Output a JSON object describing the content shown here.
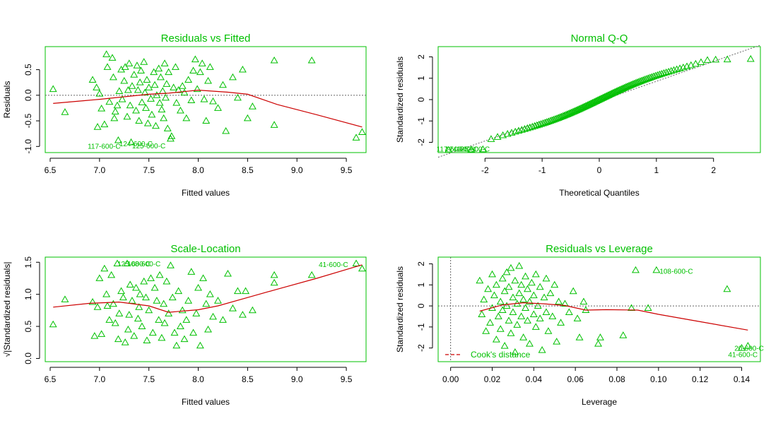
{
  "colors": {
    "accent": "#00c000",
    "smooth": "#cc0000",
    "reference": "#666666",
    "text": "#000000"
  },
  "chart_data": [
    {
      "id": "rvf",
      "type": "scatter",
      "title": "Residuals vs Fitted",
      "xlabel": "Fitted values",
      "ylabel": "Residuals",
      "xlim": [
        6.45,
        9.7
      ],
      "ylim": [
        -1.12,
        0.95
      ],
      "xticks": [
        6.5,
        7.0,
        7.5,
        8.0,
        8.5,
        9.0,
        9.5
      ],
      "xtick_labels": [
        "6.5",
        "7.0",
        "7.5",
        "8.0",
        "8.5",
        "9.0",
        "9.5"
      ],
      "yticks": [
        -1.0,
        -0.5,
        0.0,
        0.5
      ],
      "ytick_labels": [
        "-1.0",
        "-0.5",
        "0.0",
        "0.5"
      ],
      "reference_line": {
        "type": "h",
        "value": 0
      },
      "points": [
        [
          6.53,
          0.12
        ],
        [
          6.65,
          -0.33
        ],
        [
          6.93,
          0.3
        ],
        [
          6.97,
          0.15
        ],
        [
          6.98,
          -0.62
        ],
        [
          7.0,
          0.03
        ],
        [
          7.02,
          -0.26
        ],
        [
          7.05,
          -0.57
        ],
        [
          7.07,
          0.8
        ],
        [
          7.08,
          0.55
        ],
        [
          7.1,
          -0.13
        ],
        [
          7.13,
          0.73
        ],
        [
          7.14,
          0.35
        ],
        [
          7.15,
          -0.45
        ],
        [
          7.16,
          -0.32
        ],
        [
          7.18,
          -0.2
        ],
        [
          7.19,
          -0.88
        ],
        [
          7.2,
          0.08
        ],
        [
          7.22,
          0.5
        ],
        [
          7.23,
          -0.08
        ],
        [
          7.25,
          0.28
        ],
        [
          7.26,
          0.55
        ],
        [
          7.28,
          -0.42
        ],
        [
          7.29,
          0.1
        ],
        [
          7.3,
          0.62
        ],
        [
          7.31,
          -0.2
        ],
        [
          7.32,
          -0.92
        ],
        [
          7.33,
          0.18
        ],
        [
          7.35,
          0.4
        ],
        [
          7.37,
          -0.3
        ],
        [
          7.38,
          0.58
        ],
        [
          7.39,
          0.1
        ],
        [
          7.4,
          -0.5
        ],
        [
          7.41,
          0.25
        ],
        [
          7.42,
          0.48
        ],
        [
          7.43,
          -0.14
        ],
        [
          7.45,
          0.65
        ],
        [
          7.46,
          0.05
        ],
        [
          7.47,
          -0.25
        ],
        [
          7.48,
          0.3
        ],
        [
          7.49,
          -0.55
        ],
        [
          7.5,
          0.15
        ],
        [
          7.52,
          -0.07
        ],
        [
          7.53,
          -0.38
        ],
        [
          7.55,
          0.45
        ],
        [
          7.56,
          0.2
        ],
        [
          7.57,
          -0.6
        ],
        [
          7.58,
          0.0
        ],
        [
          7.6,
          0.52
        ],
        [
          7.61,
          -0.15
        ],
        [
          7.62,
          0.35
        ],
        [
          7.63,
          -0.28
        ],
        [
          7.64,
          0.08
        ],
        [
          7.65,
          -0.45
        ],
        [
          7.66,
          0.62
        ],
        [
          7.67,
          -0.05
        ],
        [
          7.68,
          0.22
        ],
        [
          7.69,
          -0.65
        ],
        [
          7.7,
          0.45
        ],
        [
          7.72,
          -0.85
        ],
        [
          7.73,
          -0.8
        ],
        [
          7.75,
          0.15
        ],
        [
          7.77,
          0.55
        ],
        [
          7.78,
          -0.15
        ],
        [
          7.8,
          0.1
        ],
        [
          7.82,
          -0.3
        ],
        [
          7.84,
          0.18
        ],
        [
          7.86,
          0.05
        ],
        [
          7.88,
          -0.45
        ],
        [
          7.9,
          0.3
        ],
        [
          7.93,
          -0.1
        ],
        [
          7.95,
          0.48
        ],
        [
          7.97,
          0.7
        ],
        [
          7.99,
          0.12
        ],
        [
          8.02,
          0.45
        ],
        [
          8.04,
          0.62
        ],
        [
          8.06,
          -0.08
        ],
        [
          8.08,
          -0.5
        ],
        [
          8.1,
          0.28
        ],
        [
          8.12,
          0.55
        ],
        [
          8.15,
          -0.12
        ],
        [
          8.2,
          -0.25
        ],
        [
          8.25,
          0.2
        ],
        [
          8.28,
          -0.7
        ],
        [
          8.35,
          0.35
        ],
        [
          8.4,
          -0.05
        ],
        [
          8.45,
          0.5
        ],
        [
          8.5,
          -0.45
        ],
        [
          8.55,
          -0.22
        ],
        [
          8.77,
          0.68
        ],
        [
          8.77,
          -0.58
        ],
        [
          9.15,
          0.68
        ],
        [
          9.6,
          -0.83
        ],
        [
          9.66,
          -0.72
        ]
      ],
      "smooth": [
        [
          6.53,
          -0.16
        ],
        [
          7.0,
          -0.08
        ],
        [
          7.5,
          0.02
        ],
        [
          7.7,
          0.04
        ],
        [
          8.0,
          0.1
        ],
        [
          8.3,
          0.06
        ],
        [
          8.5,
          0.02
        ],
        [
          8.8,
          -0.18
        ],
        [
          9.2,
          -0.38
        ],
        [
          9.66,
          -0.62
        ]
      ],
      "point_labels": [
        {
          "x": 6.88,
          "y": -0.99,
          "text": "117-600-C"
        },
        {
          "x": 7.2,
          "y": -0.94,
          "text": "124-600-C"
        },
        {
          "x": 7.33,
          "y": -0.98,
          "text": "125-600-C"
        }
      ]
    },
    {
      "id": "qq",
      "type": "scatter",
      "title": "Normal Q-Q",
      "xlabel": "Theoretical Quantiles",
      "ylabel": "Standardized residuals",
      "xlim": [
        -2.82,
        2.82
      ],
      "ylim": [
        -2.48,
        2.48
      ],
      "xticks": [
        -2,
        -1,
        0,
        1,
        2
      ],
      "xtick_labels": [
        "-2",
        "-1",
        "0",
        "1",
        "2"
      ],
      "yticks": [
        -2,
        -1,
        0,
        1,
        2
      ],
      "ytick_labels": [
        "-2",
        "-1",
        "0",
        "1",
        "2"
      ],
      "reference_line": {
        "type": "abline",
        "points": [
          [
            -2.82,
            -2.7
          ],
          [
            2.82,
            2.55
          ]
        ]
      },
      "qq_points": {
        "n": 120,
        "slope": 1.03,
        "wiggle": 0.12,
        "tail_low": -2.35,
        "tail_high": 1.9
      },
      "point_labels": [
        {
          "x": -2.85,
          "y": -2.3,
          "text": "117-600-C"
        },
        {
          "x": -2.7,
          "y": -2.3,
          "text": "124-600-C"
        },
        {
          "x": -2.5,
          "y": -2.3,
          "text": "125-600-C"
        }
      ]
    },
    {
      "id": "sl",
      "type": "scatter",
      "title": "Scale-Location",
      "xlabel": "Fitted values",
      "ylabel": "√|Standardized residuals|",
      "xlim": [
        6.45,
        9.7
      ],
      "ylim": [
        -0.05,
        1.58
      ],
      "xticks": [
        6.5,
        7.0,
        7.5,
        8.0,
        8.5,
        9.0,
        9.5
      ],
      "xtick_labels": [
        "6.5",
        "7.0",
        "7.5",
        "8.0",
        "8.5",
        "9.0",
        "9.5"
      ],
      "yticks": [
        0.0,
        0.5,
        1.0,
        1.5
      ],
      "ytick_labels": [
        "0.0",
        "0.5",
        "1.0",
        "1.5"
      ],
      "points": [
        [
          6.53,
          0.53
        ],
        [
          6.65,
          0.92
        ],
        [
          6.93,
          0.88
        ],
        [
          6.95,
          0.35
        ],
        [
          6.98,
          0.8
        ],
        [
          7.0,
          1.25
        ],
        [
          7.02,
          0.38
        ],
        [
          7.05,
          1.4
        ],
        [
          7.07,
          1.0
        ],
        [
          7.08,
          0.82
        ],
        [
          7.1,
          0.6
        ],
        [
          7.12,
          1.3
        ],
        [
          7.14,
          0.85
        ],
        [
          7.16,
          0.55
        ],
        [
          7.18,
          1.48
        ],
        [
          7.19,
          0.3
        ],
        [
          7.2,
          0.7
        ],
        [
          7.22,
          1.05
        ],
        [
          7.24,
          0.95
        ],
        [
          7.26,
          0.25
        ],
        [
          7.28,
          1.48
        ],
        [
          7.29,
          0.45
        ],
        [
          7.3,
          0.68
        ],
        [
          7.31,
          1.15
        ],
        [
          7.33,
          0.9
        ],
        [
          7.35,
          0.35
        ],
        [
          7.37,
          1.1
        ],
        [
          7.39,
          0.62
        ],
        [
          7.4,
          0.8
        ],
        [
          7.41,
          1.0
        ],
        [
          7.43,
          0.5
        ],
        [
          7.45,
          1.2
        ],
        [
          7.47,
          0.95
        ],
        [
          7.48,
          0.28
        ],
        [
          7.5,
          0.75
        ],
        [
          7.52,
          1.25
        ],
        [
          7.54,
          0.4
        ],
        [
          7.56,
          1.1
        ],
        [
          7.58,
          0.9
        ],
        [
          7.6,
          0.6
        ],
        [
          7.61,
          1.3
        ],
        [
          7.63,
          0.32
        ],
        [
          7.65,
          0.85
        ],
        [
          7.66,
          0.55
        ],
        [
          7.68,
          1.2
        ],
        [
          7.7,
          0.7
        ],
        [
          7.72,
          1.45
        ],
        [
          7.74,
          0.95
        ],
        [
          7.76,
          0.4
        ],
        [
          7.78,
          0.2
        ],
        [
          7.8,
          1.05
        ],
        [
          7.82,
          0.5
        ],
        [
          7.84,
          0.75
        ],
        [
          7.86,
          0.3
        ],
        [
          7.88,
          0.6
        ],
        [
          7.9,
          0.9
        ],
        [
          7.93,
          1.35
        ],
        [
          7.95,
          0.4
        ],
        [
          7.98,
          0.7
        ],
        [
          8.0,
          1.1
        ],
        [
          8.02,
          0.2
        ],
        [
          8.05,
          1.25
        ],
        [
          8.08,
          0.85
        ],
        [
          8.1,
          0.45
        ],
        [
          8.12,
          1.0
        ],
        [
          8.15,
          0.65
        ],
        [
          8.2,
          0.9
        ],
        [
          8.25,
          0.6
        ],
        [
          8.3,
          1.32
        ],
        [
          8.35,
          0.78
        ],
        [
          8.4,
          1.05
        ],
        [
          8.45,
          0.68
        ],
        [
          8.48,
          1.05
        ],
        [
          8.55,
          0.75
        ],
        [
          8.77,
          1.3
        ],
        [
          8.77,
          1.18
        ],
        [
          9.15,
          1.3
        ],
        [
          9.6,
          1.48
        ],
        [
          9.66,
          1.4
        ]
      ],
      "smooth": [
        [
          6.53,
          0.8
        ],
        [
          6.9,
          0.86
        ],
        [
          7.2,
          0.88
        ],
        [
          7.5,
          0.82
        ],
        [
          7.7,
          0.72
        ],
        [
          8.0,
          0.76
        ],
        [
          8.2,
          0.82
        ],
        [
          8.5,
          0.95
        ],
        [
          8.8,
          1.08
        ],
        [
          9.2,
          1.25
        ],
        [
          9.66,
          1.46
        ]
      ],
      "point_labels": [
        {
          "x": 7.18,
          "y": 1.48,
          "text": "125-600-C"
        },
        {
          "x": 7.28,
          "y": 1.48,
          "text": "108-600-C"
        },
        {
          "x": 9.22,
          "y": 1.47,
          "text": "41-600-C"
        }
      ]
    },
    {
      "id": "rvl",
      "type": "scatter",
      "title": "Residuals vs Leverage",
      "xlabel": "Leverage",
      "ylabel": "Standardized residuals",
      "xlim": [
        -0.006,
        0.149
      ],
      "ylim": [
        -2.65,
        2.32
      ],
      "xticks": [
        0.0,
        0.02,
        0.04,
        0.06,
        0.08,
        0.1,
        0.12,
        0.14
      ],
      "xtick_labels": [
        "0.00",
        "0.02",
        "0.04",
        "0.06",
        "0.08",
        "0.10",
        "0.12",
        "0.14"
      ],
      "yticks": [
        -2,
        -1,
        0,
        1,
        2
      ],
      "ytick_labels": [
        "-2",
        "-1",
        "0",
        "1",
        "2"
      ],
      "reference_lines": [
        {
          "type": "h",
          "value": 0
        },
        {
          "type": "v",
          "value": 0
        }
      ],
      "points": [
        [
          0.014,
          1.2
        ],
        [
          0.015,
          -0.4
        ],
        [
          0.016,
          0.3
        ],
        [
          0.017,
          -1.2
        ],
        [
          0.018,
          0.8
        ],
        [
          0.019,
          -0.8
        ],
        [
          0.02,
          1.5
        ],
        [
          0.02,
          -0.1
        ],
        [
          0.021,
          0.5
        ],
        [
          0.022,
          -1.6
        ],
        [
          0.022,
          1.0
        ],
        [
          0.023,
          -0.5
        ],
        [
          0.024,
          0.2
        ],
        [
          0.024,
          -1.1
        ],
        [
          0.025,
          1.3
        ],
        [
          0.025,
          -0.2
        ],
        [
          0.026,
          0.7
        ],
        [
          0.026,
          -1.9
        ],
        [
          0.027,
          1.6
        ],
        [
          0.027,
          0.0
        ],
        [
          0.028,
          -0.7
        ],
        [
          0.028,
          0.9
        ],
        [
          0.029,
          1.8
        ],
        [
          0.029,
          -1.3
        ],
        [
          0.03,
          0.4
        ],
        [
          0.03,
          -0.3
        ],
        [
          0.031,
          1.2
        ],
        [
          0.031,
          -2.2
        ],
        [
          0.032,
          0.1
        ],
        [
          0.032,
          -0.9
        ],
        [
          0.033,
          1.9
        ],
        [
          0.033,
          0.6
        ],
        [
          0.034,
          -0.5
        ],
        [
          0.034,
          1.0
        ],
        [
          0.035,
          -1.5
        ],
        [
          0.035,
          0.3
        ],
        [
          0.036,
          -0.1
        ],
        [
          0.036,
          1.4
        ],
        [
          0.037,
          -0.7
        ],
        [
          0.037,
          0.8
        ],
        [
          0.038,
          -1.8
        ],
        [
          0.038,
          0.2
        ],
        [
          0.039,
          1.1
        ],
        [
          0.04,
          -0.4
        ],
        [
          0.04,
          0.5
        ],
        [
          0.041,
          -1.0
        ],
        [
          0.041,
          1.5
        ],
        [
          0.042,
          0.0
        ],
        [
          0.043,
          -0.6
        ],
        [
          0.043,
          0.9
        ],
        [
          0.044,
          -2.1
        ],
        [
          0.045,
          0.4
        ],
        [
          0.046,
          -0.3
        ],
        [
          0.046,
          1.3
        ],
        [
          0.047,
          -1.2
        ],
        [
          0.048,
          0.6
        ],
        [
          0.049,
          -0.5
        ],
        [
          0.05,
          1.0
        ],
        [
          0.051,
          -1.7
        ],
        [
          0.052,
          0.2
        ],
        [
          0.053,
          -0.8
        ],
        [
          0.055,
          0.1
        ],
        [
          0.057,
          -0.3
        ],
        [
          0.059,
          0.7
        ],
        [
          0.061,
          -0.6
        ],
        [
          0.062,
          -1.5
        ],
        [
          0.064,
          0.2
        ],
        [
          0.065,
          -0.2
        ],
        [
          0.071,
          -1.8
        ],
        [
          0.072,
          -1.5
        ],
        [
          0.083,
          -1.4
        ],
        [
          0.087,
          -0.1
        ],
        [
          0.089,
          1.7
        ],
        [
          0.095,
          -0.1
        ],
        [
          0.099,
          1.7
        ],
        [
          0.133,
          0.8
        ],
        [
          0.14,
          -2.0
        ],
        [
          0.143,
          -1.9
        ]
      ],
      "smooth": [
        [
          0.014,
          -0.25
        ],
        [
          0.025,
          0.05
        ],
        [
          0.035,
          0.15
        ],
        [
          0.045,
          0.1
        ],
        [
          0.055,
          0.02
        ],
        [
          0.065,
          -0.2
        ],
        [
          0.075,
          -0.18
        ],
        [
          0.09,
          -0.2
        ],
        [
          0.1,
          -0.4
        ],
        [
          0.12,
          -0.75
        ],
        [
          0.143,
          -1.15
        ]
      ],
      "point_labels": [
        {
          "x": 0.1005,
          "y": 1.66,
          "text": "108-600-C"
        },
        {
          "x": 0.1335,
          "y": -2.3,
          "text": "41-600-C"
        },
        {
          "x": 0.1365,
          "y": -2.0,
          "text": "20-600-C"
        }
      ],
      "legend": {
        "label": "Cook's distance",
        "placement": "bottom-left"
      }
    }
  ]
}
